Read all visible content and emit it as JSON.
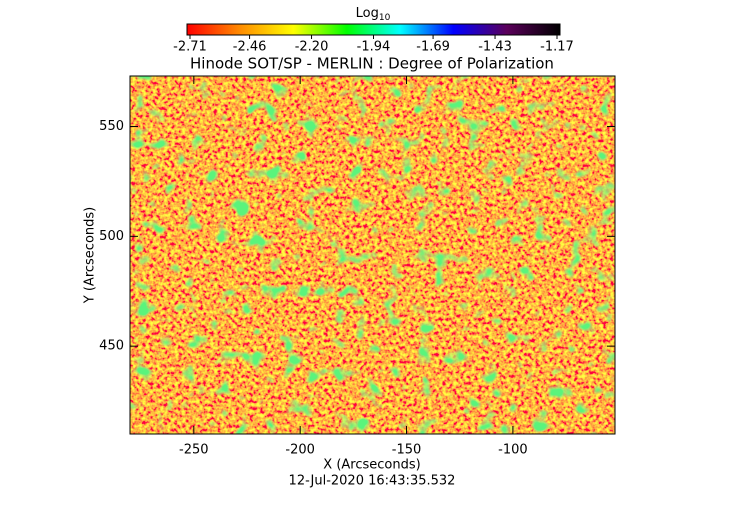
{
  "chart_data": {
    "type": "image",
    "title": "Hinode SOT/SP - MERLIN : Degree of Polarization",
    "x_label": "X (Arcseconds)",
    "y_label": "Y (Arcseconds)",
    "footer": "12-Jul-2020 16:43:35.532",
    "xlim": [
      -280,
      -52
    ],
    "ylim": [
      410,
      573
    ],
    "xticks": [
      -250,
      -200,
      -150,
      -100
    ],
    "yticks": [
      450,
      500,
      550
    ],
    "colorbar": {
      "label": "Log",
      "label_subscript": "10",
      "clim": [
        -2.71,
        -1.17
      ],
      "ticks": [
        -2.71,
        -2.46,
        {
          "value": -2.2,
          "label": "-2.20"
        },
        -1.94,
        -1.69,
        -1.43,
        -1.17
      ],
      "colors": [
        "#ff0000",
        "#ff8c00",
        "#ffff00",
        "#00ff00",
        "#00ffff",
        "#0000ff",
        "#5a005a",
        "#000000"
      ]
    }
  }
}
